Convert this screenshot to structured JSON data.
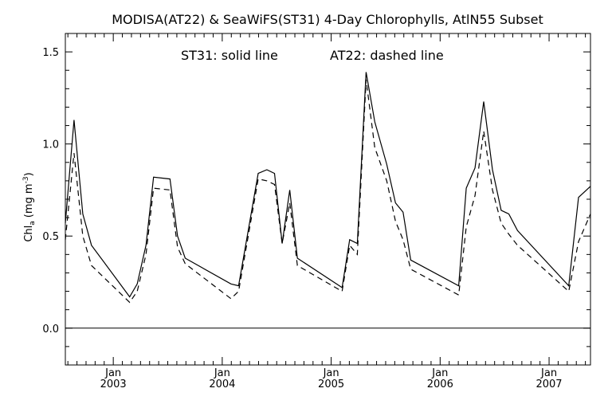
{
  "chart_data": {
    "type": "line",
    "title": "MODISA(AT22) & SeaWiFS(ST31) 4-Day Chlorophylls, AtlN55 Subset",
    "annotation_solid": "ST31: solid line",
    "annotation_dashed": "AT22: dashed line",
    "ylabel": "Chl",
    "ylabel_sub": "a",
    "ylabel_unit_open": "(mg m",
    "ylabel_unit_sup": "-3",
    "ylabel_unit_close": ")",
    "ylim": [
      -0.2,
      1.6
    ],
    "xlim": [
      2002.56,
      2007.38
    ],
    "yticks": [
      {
        "value": 0.0,
        "label": "0.0"
      },
      {
        "value": 0.5,
        "label": "0.5"
      },
      {
        "value": 1.0,
        "label": "1.0"
      },
      {
        "value": 1.5,
        "label": "1.5"
      }
    ],
    "xticks": [
      {
        "value": 2003.0,
        "month": "Jan",
        "year": "2003"
      },
      {
        "value": 2004.0,
        "month": "Jan",
        "year": "2004"
      },
      {
        "value": 2005.0,
        "month": "Jan",
        "year": "2005"
      },
      {
        "value": 2006.0,
        "month": "Jan",
        "year": "2006"
      },
      {
        "value": 2007.0,
        "month": "Jan",
        "year": "2007"
      }
    ],
    "zero_line": 0.0,
    "series": [
      {
        "name": "ST31",
        "style": "solid",
        "points": [
          [
            2002.56,
            0.57
          ],
          [
            2002.64,
            1.13
          ],
          [
            2002.72,
            0.62
          ],
          [
            2002.8,
            0.45
          ],
          [
            2003.15,
            0.17
          ],
          [
            2003.22,
            0.24
          ],
          [
            2003.3,
            0.45
          ],
          [
            2003.37,
            0.82
          ],
          [
            2003.52,
            0.81
          ],
          [
            2003.59,
            0.5
          ],
          [
            2003.66,
            0.38
          ],
          [
            2004.08,
            0.24
          ],
          [
            2004.15,
            0.23
          ],
          [
            2004.33,
            0.84
          ],
          [
            2004.41,
            0.86
          ],
          [
            2004.48,
            0.84
          ],
          [
            2004.55,
            0.46
          ],
          [
            2004.62,
            0.75
          ],
          [
            2004.69,
            0.38
          ],
          [
            2005.1,
            0.22
          ],
          [
            2005.17,
            0.48
          ],
          [
            2005.24,
            0.46
          ],
          [
            2005.32,
            1.39
          ],
          [
            2005.4,
            1.12
          ],
          [
            2005.51,
            0.89
          ],
          [
            2005.59,
            0.68
          ],
          [
            2005.66,
            0.63
          ],
          [
            2005.73,
            0.37
          ],
          [
            2006.17,
            0.23
          ],
          [
            2006.24,
            0.76
          ],
          [
            2006.32,
            0.87
          ],
          [
            2006.4,
            1.23
          ],
          [
            2006.48,
            0.86
          ],
          [
            2006.56,
            0.64
          ],
          [
            2006.63,
            0.62
          ],
          [
            2006.71,
            0.53
          ],
          [
            2007.18,
            0.23
          ],
          [
            2007.27,
            0.71
          ],
          [
            2007.38,
            0.77
          ]
        ]
      },
      {
        "name": "AT22",
        "style": "dashed",
        "points": [
          [
            2002.56,
            0.48
          ],
          [
            2002.64,
            0.95
          ],
          [
            2002.72,
            0.5
          ],
          [
            2002.8,
            0.34
          ],
          [
            2003.15,
            0.14
          ],
          [
            2003.22,
            0.2
          ],
          [
            2003.3,
            0.4
          ],
          [
            2003.37,
            0.76
          ],
          [
            2003.52,
            0.75
          ],
          [
            2003.59,
            0.44
          ],
          [
            2003.66,
            0.35
          ],
          [
            2004.08,
            0.16
          ],
          [
            2004.15,
            0.2
          ],
          [
            2004.33,
            0.81
          ],
          [
            2004.41,
            0.8
          ],
          [
            2004.48,
            0.78
          ],
          [
            2004.55,
            0.46
          ],
          [
            2004.62,
            0.68
          ],
          [
            2004.69,
            0.34
          ],
          [
            2005.1,
            0.2
          ],
          [
            2005.17,
            0.45
          ],
          [
            2005.24,
            0.4
          ],
          [
            2005.32,
            1.35
          ],
          [
            2005.4,
            0.98
          ],
          [
            2005.51,
            0.8
          ],
          [
            2005.59,
            0.58
          ],
          [
            2005.66,
            0.48
          ],
          [
            2005.73,
            0.32
          ],
          [
            2006.17,
            0.18
          ],
          [
            2006.24,
            0.55
          ],
          [
            2006.32,
            0.72
          ],
          [
            2006.4,
            1.07
          ],
          [
            2006.48,
            0.75
          ],
          [
            2006.56,
            0.57
          ],
          [
            2006.63,
            0.51
          ],
          [
            2006.71,
            0.45
          ],
          [
            2007.18,
            0.2
          ],
          [
            2007.27,
            0.47
          ],
          [
            2007.38,
            0.62
          ]
        ]
      }
    ]
  }
}
